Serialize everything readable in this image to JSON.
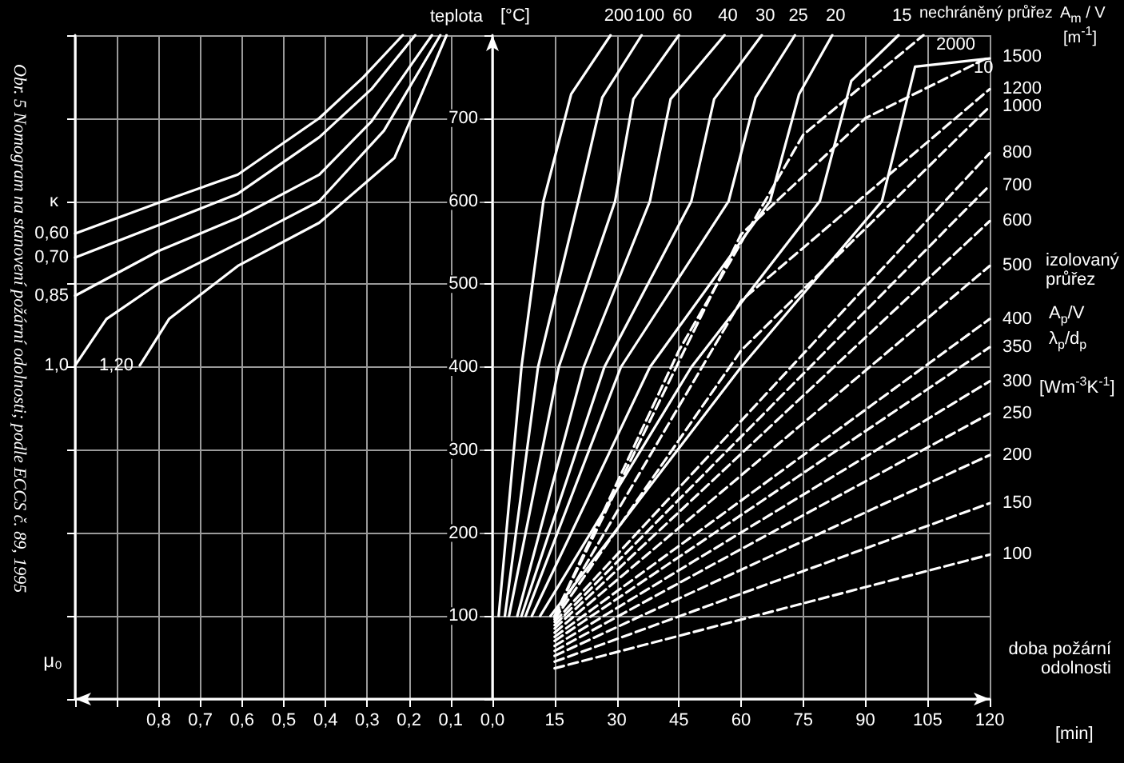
{
  "chart_data": [
    {
      "type": "line",
      "xlabel": "μ₀",
      "annotations": [
        "Obr. 5 Nomogram na stanovení požární odolnosti; podle ECCS č. 89, 1995",
        "κ"
      ],
      "xlim": [
        1.0,
        0
      ],
      "xticks": [
        {
          "value": 1.0,
          "label": null
        },
        {
          "value": 0.9,
          "label": null
        },
        {
          "value": 0.8,
          "label": "0,8"
        },
        {
          "value": 0.7,
          "label": "0,7"
        },
        {
          "value": 0.6,
          "label": "0,6"
        },
        {
          "value": 0.5,
          "label": "0,5"
        },
        {
          "value": 0.4,
          "label": "0,4"
        },
        {
          "value": 0.3,
          "label": "0,3"
        },
        {
          "value": 0.2,
          "label": "0,2"
        },
        {
          "value": 0.1,
          "label": "0,1"
        },
        {
          "value": 0,
          "label": "0,0"
        }
      ],
      "ylim": [
        0,
        800
      ],
      "yticks": [
        100,
        200,
        300,
        400,
        500,
        600,
        700
      ],
      "tick_labels": "x",
      "grid": true,
      "legend": false,
      "marker": "none",
      "line_style": "solid",
      "series": [
        {
          "name": "0,60",
          "color": "#ffffff",
          "x": [
            1.0,
            0.8,
            0.61,
            0.415,
            0.31,
            0.215
          ],
          "values": [
            561,
            598,
            632,
            700,
            749,
            800
          ]
        },
        {
          "name": "0,70",
          "color": "#ffffff",
          "x": [
            1.0,
            0.8,
            0.61,
            0.415,
            0.29,
            0.185
          ],
          "values": [
            532,
            571,
            609,
            677,
            735,
            800
          ]
        },
        {
          "name": "0,85",
          "color": "#ffffff",
          "x": [
            1.0,
            0.8,
            0.61,
            0.415,
            0.29,
            0.145
          ],
          "values": [
            486,
            540,
            580,
            632,
            696,
            800
          ]
        },
        {
          "name": "1,0",
          "color": "#ffffff",
          "x": [
            1.0,
            0.925,
            0.8,
            0.61,
            0.415,
            0.26,
            0.125
          ],
          "values": [
            402,
            458,
            501,
            549,
            600,
            685,
            800
          ]
        },
        {
          "name": "1,20",
          "color": "#ffffff",
          "x": [
            0.845,
            0.775,
            0.61,
            0.415,
            0.235,
            0.11
          ],
          "values": [
            402,
            458,
            522,
            574,
            652,
            800
          ]
        }
      ]
    },
    {
      "type": "line",
      "ylabel": "teplota",
      "xlabel": "doba požární odolnosti",
      "annotations": [
        "[°C]",
        "nechráněný průřez",
        "A$_{m}$ / V",
        "[m$^{-1}$]",
        "izolovaný průřez",
        "A$_{p}$/V λ$_{p}$/d$_{p}$",
        "[Wm$^{-3}$K$^{-1}$]",
        "[min]"
      ],
      "xlim": [
        0,
        120
      ],
      "xticks": [
        {
          "value": 0,
          "label": null
        },
        15,
        30,
        45,
        60,
        75,
        90,
        105,
        120
      ],
      "ylim": [
        0,
        800
      ],
      "yticks": [
        100,
        200,
        300,
        400,
        500,
        600,
        700
      ],
      "grid": true,
      "legend": false,
      "marker": "none",
      "line_style": "solid",
      "series": [
        {
          "name": "200",
          "color": "#ffffff",
          "x": [
            1.5,
            7,
            12.3,
            19,
            28.5
          ],
          "values": [
            100,
            400,
            600,
            729,
            800
          ]
        },
        {
          "name": "100",
          "color": "#ffffff",
          "x": [
            3,
            11,
            20.7,
            26.5,
            36
          ],
          "values": [
            100,
            400,
            600,
            725,
            800
          ]
        },
        {
          "name": "60",
          "color": "#ffffff",
          "x": [
            4,
            16,
            29.6,
            34,
            45
          ],
          "values": [
            100,
            400,
            600,
            723,
            800
          ]
        },
        {
          "name": "40",
          "color": "#ffffff",
          "x": [
            6,
            22,
            38,
            43,
            56
          ],
          "values": [
            100,
            400,
            600,
            723,
            800
          ]
        },
        {
          "name": "30",
          "color": "#ffffff",
          "x": [
            7,
            27,
            48,
            53.5,
            65
          ],
          "values": [
            100,
            400,
            600,
            723,
            800
          ]
        },
        {
          "name": "25",
          "color": "#ffffff",
          "x": [
            8,
            31,
            57,
            63.5,
            73
          ],
          "values": [
            100,
            400,
            600,
            725,
            800
          ]
        },
        {
          "name": "20",
          "color": "#ffffff",
          "x": [
            9.5,
            38,
            67,
            74,
            82
          ],
          "values": [
            100,
            400,
            600,
            729,
            800
          ]
        },
        {
          "name": "15",
          "color": "#ffffff",
          "x": [
            11.5,
            48,
            79,
            86.6,
            98
          ],
          "values": [
            100,
            400,
            600,
            745,
            800
          ]
        },
        {
          "name": "10",
          "color": "#ffffff",
          "x": [
            14,
            60,
            94,
            102,
            120
          ],
          "values": [
            100,
            400,
            600,
            762,
            772
          ]
        },
        {
          "name": "100",
          "color": "#ffffff",
          "line_style": "dashed",
          "x": [
            15,
            120
          ],
          "values": [
            37,
            174
          ]
        },
        {
          "name": "150",
          "color": "#ffffff",
          "line_style": "dashed",
          "x": [
            15,
            120
          ],
          "values": [
            45,
            236
          ]
        },
        {
          "name": "200",
          "color": "#ffffff",
          "line_style": "dashed",
          "x": [
            15,
            120
          ],
          "values": [
            52,
            294
          ]
        },
        {
          "name": "250",
          "color": "#ffffff",
          "line_style": "dashed",
          "x": [
            15,
            120
          ],
          "values": [
            58,
            344
          ]
        },
        {
          "name": "300",
          "color": "#ffffff",
          "line_style": "dashed",
          "x": [
            15,
            120
          ],
          "values": [
            64,
            383
          ]
        },
        {
          "name": "350",
          "color": "#ffffff",
          "line_style": "dashed",
          "x": [
            15,
            120
          ],
          "values": [
            70,
            424
          ]
        },
        {
          "name": "400",
          "color": "#ffffff",
          "line_style": "dashed",
          "x": [
            15,
            120
          ],
          "values": [
            75,
            458
          ]
        },
        {
          "name": "500",
          "color": "#ffffff",
          "line_style": "dashed",
          "x": [
            15,
            120
          ],
          "values": [
            80,
            522
          ]
        },
        {
          "name": "600",
          "color": "#ffffff",
          "line_style": "dashed",
          "x": [
            15,
            120
          ],
          "values": [
            85,
            576
          ]
        },
        {
          "name": "700",
          "color": "#ffffff",
          "line_style": "dashed",
          "x": [
            15,
            120
          ],
          "values": [
            89,
            619
          ]
        },
        {
          "name": "800",
          "color": "#ffffff",
          "line_style": "dashed",
          "x": [
            15,
            120
          ],
          "values": [
            93,
            658
          ]
        },
        {
          "name": "1000",
          "color": "#ffffff",
          "line_style": "dashed",
          "x": [
            15,
            60,
            120
          ],
          "values": [
            96,
            420,
            714
          ]
        },
        {
          "name": "1200",
          "color": "#ffffff",
          "line_style": "dashed",
          "x": [
            15,
            60,
            120
          ],
          "values": [
            98,
            480,
            735
          ]
        },
        {
          "name": "1500",
          "color": "#ffffff",
          "line_style": "dashed",
          "x": [
            15,
            60,
            90,
            120
          ],
          "values": [
            100,
            560,
            700,
            774
          ]
        },
        {
          "name": "2000",
          "color": "#ffffff",
          "line_style": "dashed",
          "x": [
            15,
            45,
            75,
            104
          ],
          "values": [
            100,
            420,
            680,
            800
          ]
        }
      ]
    }
  ]
}
